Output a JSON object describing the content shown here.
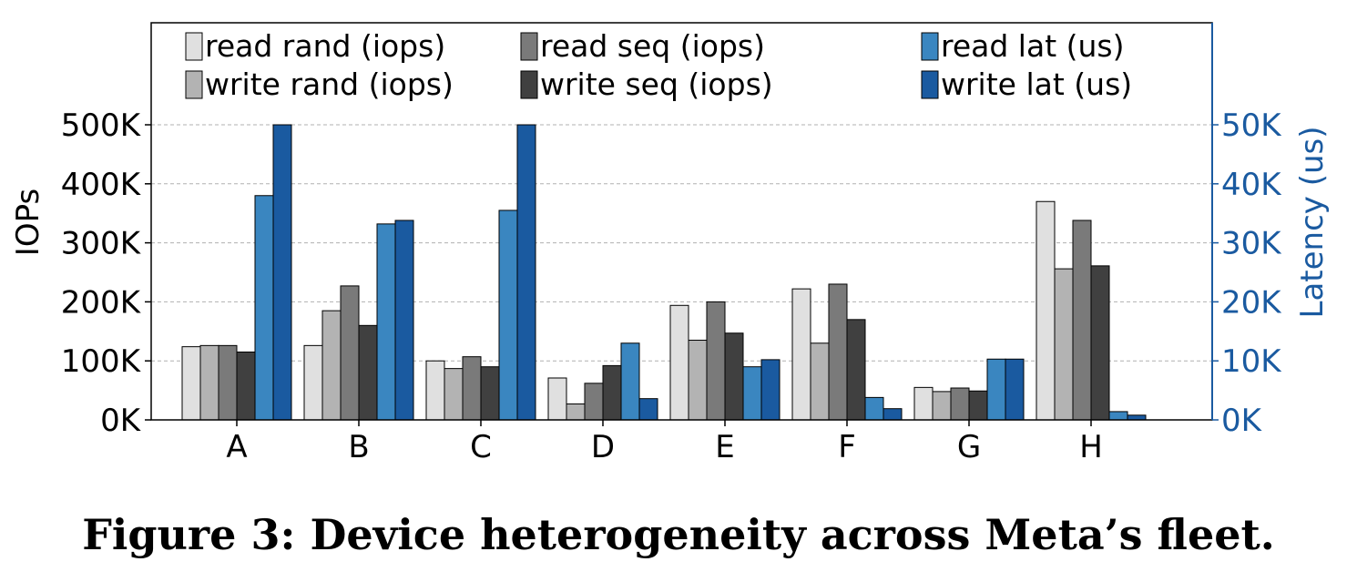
{
  "caption": "Figure 3: Device heterogeneity across Meta’s fleet.",
  "chart_data": {
    "type": "bar",
    "categories": [
      "A",
      "B",
      "C",
      "D",
      "E",
      "F",
      "G",
      "H"
    ],
    "ylabel": "IOPs",
    "y2label": "Latency (us)",
    "ylim": [
      0,
      500000
    ],
    "y2lim": [
      0,
      50000
    ],
    "yticks": [
      "0K",
      "100K",
      "200K",
      "300K",
      "400K",
      "500K"
    ],
    "y2ticks": [
      "0K",
      "10K",
      "20K",
      "30K",
      "40K",
      "50K"
    ],
    "grid": true,
    "legend_position": "top",
    "series": [
      {
        "name": "read rand (iops)",
        "axis": "left",
        "color": "#e0e0e0",
        "values": [
          124000,
          126000,
          100000,
          71000,
          194000,
          222000,
          55000,
          370000
        ]
      },
      {
        "name": "write rand (iops)",
        "axis": "left",
        "color": "#b3b3b3",
        "values": [
          126000,
          185000,
          87000,
          27000,
          135000,
          130000,
          48000,
          256000
        ]
      },
      {
        "name": "read seq (iops)",
        "axis": "left",
        "color": "#7a7a7a",
        "values": [
          126000,
          227000,
          107000,
          62000,
          200000,
          230000,
          54000,
          338000
        ]
      },
      {
        "name": "write seq (iops)",
        "axis": "left",
        "color": "#404040",
        "values": [
          115000,
          160000,
          90000,
          92000,
          147000,
          170000,
          49000,
          261000
        ]
      },
      {
        "name": "read lat (us)",
        "axis": "right",
        "color": "#3a86c0",
        "values": [
          38000,
          33200,
          35500,
          13000,
          9000,
          3800,
          10300,
          1400
        ]
      },
      {
        "name": "write lat (us)",
        "axis": "right",
        "color": "#1a5aa0",
        "values": [
          50000,
          33800,
          50000,
          3600,
          10200,
          1900,
          10300,
          800
        ]
      }
    ],
    "legend_order": [
      "read rand (iops)",
      "read seq (iops)",
      "read lat (us)",
      "write rand (iops)",
      "write seq (iops)",
      "write lat (us)"
    ]
  }
}
